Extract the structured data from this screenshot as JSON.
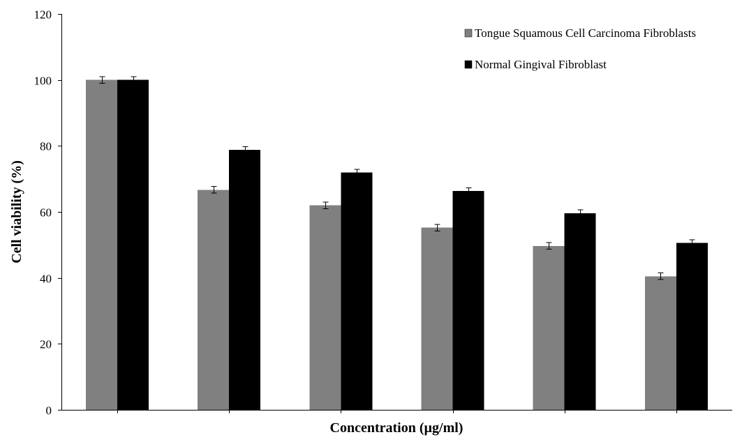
{
  "chart_data": {
    "type": "bar",
    "xlabel": "Concentration (µg/ml)",
    "ylabel": "Cell viability (%)",
    "ylim": [
      0,
      120
    ],
    "yticks": [
      0,
      20,
      40,
      60,
      80,
      100,
      120
    ],
    "categories": [
      "",
      "",
      "",
      "",
      "",
      ""
    ],
    "legend_position": "top-right",
    "grid": false,
    "series": [
      {
        "name": "Tongue Squamous Cell Carcinoma Fibroblasts",
        "color": "#808080",
        "values": [
          100,
          66.7,
          62,
          55.2,
          49.7,
          40.5
        ],
        "errors": [
          1.0,
          1.0,
          1.0,
          1.0,
          1.0,
          1.0
        ]
      },
      {
        "name": "Normal Gingival Fibroblast",
        "color": "#000000",
        "values": [
          100,
          78.8,
          71.9,
          66.3,
          59.6,
          50.6
        ],
        "errors": [
          1.0,
          1.0,
          1.0,
          1.0,
          1.0,
          1.0
        ]
      }
    ]
  }
}
